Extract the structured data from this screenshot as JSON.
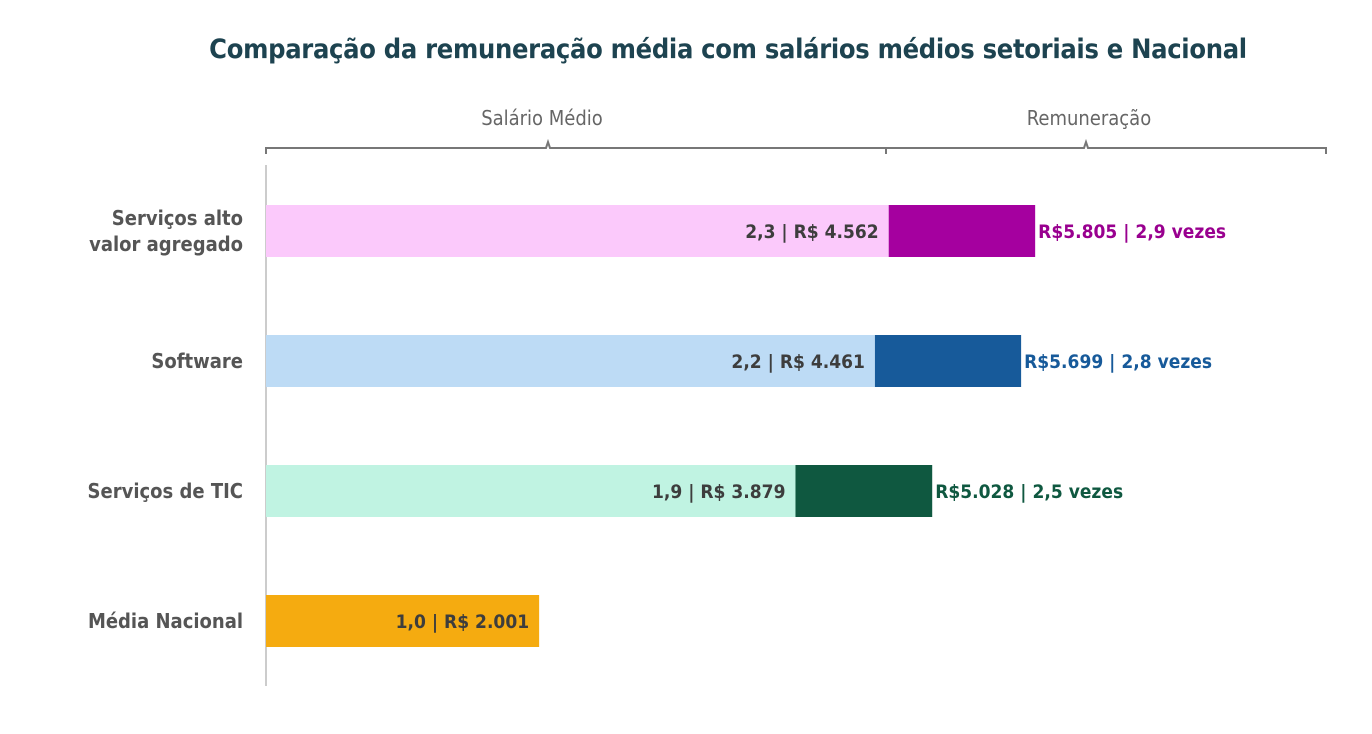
{
  "chart_data": {
    "type": "bar",
    "orientation": "horizontal",
    "stacked": true,
    "title": "Comparação da remuneração média com salários médios setoriais e Nacional",
    "group_labels": [
      "Salário Médio",
      "Remuneração"
    ],
    "categories": [
      "Serviços alto valor agregado",
      "Software",
      "Serviços de TIC",
      "Média Nacional"
    ],
    "category_lines": [
      [
        "Serviços alto",
        "valor agregado"
      ],
      [
        "Software"
      ],
      [
        "Serviços de TIC"
      ],
      [
        "Média Nacional"
      ]
    ],
    "series": [
      {
        "name": "Salário Médio",
        "values": [
          4562,
          4461,
          3879,
          2001
        ],
        "ratio": [
          2.3,
          2.2,
          1.9,
          1.0
        ],
        "labels": [
          "2,3  | R$ 4.562",
          "2,2  | R$ 4.461",
          "1,9 | R$ 3.879",
          "1,0 | R$ 2.001"
        ],
        "colors": [
          "#fbc9fb",
          "#bddbf5",
          "#c0f3e2",
          "#f5ab10"
        ]
      },
      {
        "name": "Remuneração",
        "values": [
          5805,
          5699,
          5028,
          null
        ],
        "ratio": [
          2.9,
          2.8,
          2.5,
          null
        ],
        "labels": [
          "R$5.805  |  2,9 vezes",
          "R$5.699  |  2,8 vezes",
          "R$5.028  |  2,5 vezes",
          null
        ],
        "colors": [
          "#a5009f",
          "#175a9a",
          "#0f5840",
          null
        ]
      }
    ],
    "label_colors": {
      "inner": "#3d3d3d",
      "outer": [
        "#99008f",
        "#175a9a",
        "#0f5840"
      ]
    },
    "grid": false
  }
}
